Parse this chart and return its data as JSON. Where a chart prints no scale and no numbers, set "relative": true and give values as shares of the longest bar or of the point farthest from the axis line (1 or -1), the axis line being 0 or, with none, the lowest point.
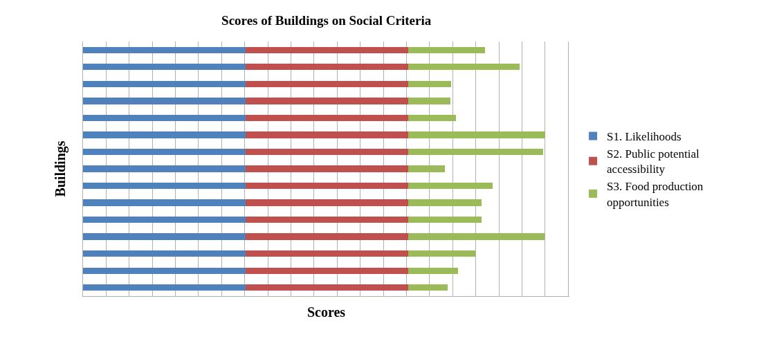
{
  "chart_data": {
    "type": "bar",
    "title": "Scores of Buildings on Social Criteria",
    "xlabel": "Scores",
    "ylabel": "Buildings",
    "orientation": "horizontal",
    "stacked": true,
    "relative": true,
    "grid": "x",
    "legend": "right",
    "categories": [
      null,
      null,
      null,
      null,
      null,
      null,
      null,
      null,
      null,
      null,
      null,
      null,
      null,
      null,
      null
    ],
    "series": [
      {
        "name": "S1. Likelihoods",
        "color": "#4f81bd",
        "values": [
          0.352,
          0.352,
          0.352,
          0.352,
          0.352,
          0.352,
          0.352,
          0.352,
          0.352,
          0.352,
          0.352,
          0.352,
          0.352,
          0.352,
          0.352
        ]
      },
      {
        "name": "S2. Public potential accessibility",
        "color": "#c0504d",
        "values": [
          0.352,
          0.352,
          0.352,
          0.352,
          0.352,
          0.352,
          0.352,
          0.352,
          0.352,
          0.352,
          0.352,
          0.352,
          0.352,
          0.352,
          0.352
        ]
      },
      {
        "name": "S3. Food production opportunities",
        "color": "#9bbb59",
        "values": [
          0.166,
          0.241,
          0.092,
          0.091,
          0.103,
          0.296,
          0.292,
          0.079,
          0.183,
          0.159,
          0.159,
          0.294,
          0.145,
          0.108,
          0.085
        ]
      }
    ]
  }
}
